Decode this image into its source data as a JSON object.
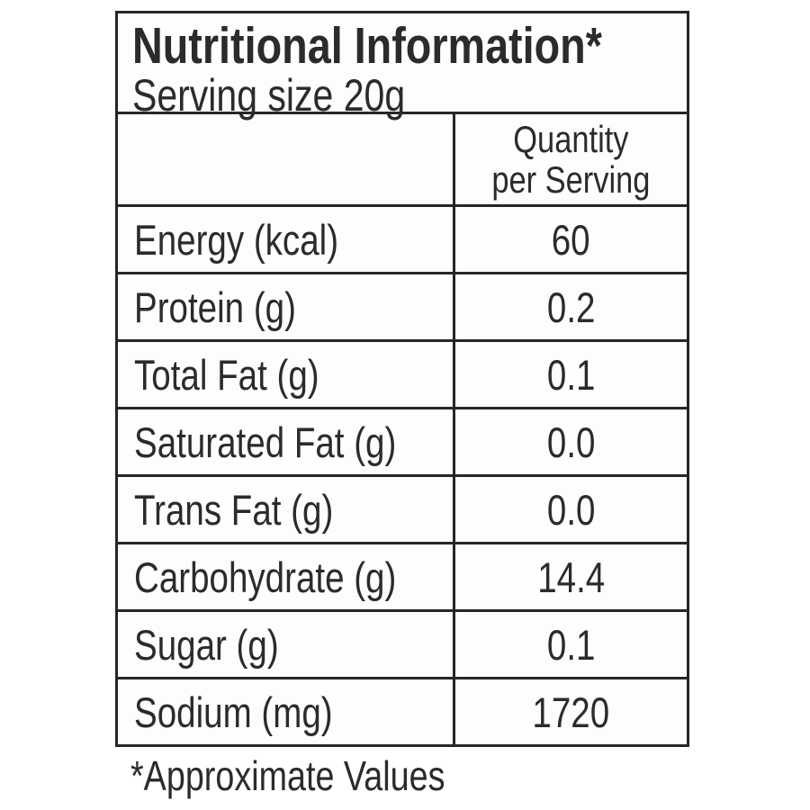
{
  "label": {
    "title": "Nutritional Information*",
    "serving_line": "Serving size 20g",
    "column_header": {
      "line1": "Quantity",
      "line2": "per Serving"
    },
    "rows": [
      {
        "label": "Energy (kcal)",
        "value": "60"
      },
      {
        "label": "Protein (g)",
        "value": "0.2"
      },
      {
        "label": "Total Fat (g)",
        "value": "0.1"
      },
      {
        "label": "Saturated Fat (g)",
        "value": "0.0"
      },
      {
        "label": "Trans Fat (g)",
        "value": "0.0"
      },
      {
        "label": "Carbohydrate (g)",
        "value": "14.4"
      },
      {
        "label": "Sugar (g)",
        "value": "0.1"
      },
      {
        "label": "Sodium (mg)",
        "value": "1720"
      }
    ],
    "footnote": "*Approximate Values"
  },
  "colors": {
    "text": "#2b2b2b",
    "border": "#262626",
    "background": "#ffffff",
    "panel": "#fdfdfd"
  }
}
